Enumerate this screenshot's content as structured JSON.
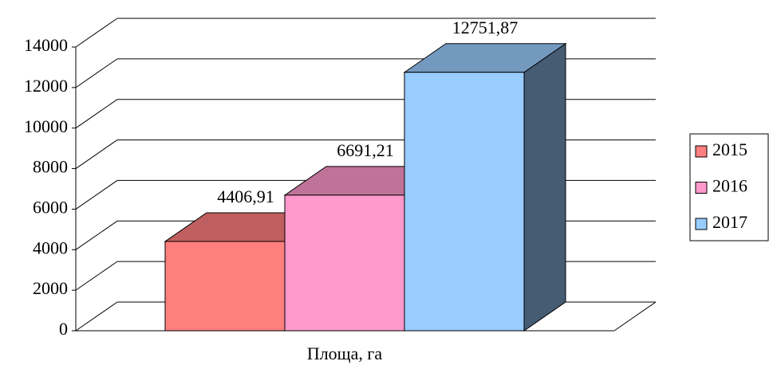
{
  "chart_data": {
    "type": "bar3d",
    "categories": [
      "Площа, га"
    ],
    "series": [
      {
        "name": "2015",
        "color": "#ff7f7f",
        "values": [
          4406.91
        ],
        "value_labels": [
          "4406,91"
        ]
      },
      {
        "name": "2016",
        "color": "#ff99cc",
        "values": [
          6691.21
        ],
        "value_labels": [
          "6691,21"
        ]
      },
      {
        "name": "2017",
        "color": "#99ccff",
        "values": [
          12751.87
        ],
        "value_labels": [
          "12751,87"
        ]
      }
    ],
    "ylim": [
      0,
      14000
    ],
    "yticks": [
      0,
      2000,
      4000,
      6000,
      8000,
      10000,
      12000,
      14000
    ],
    "grid": true,
    "legend": "right"
  }
}
